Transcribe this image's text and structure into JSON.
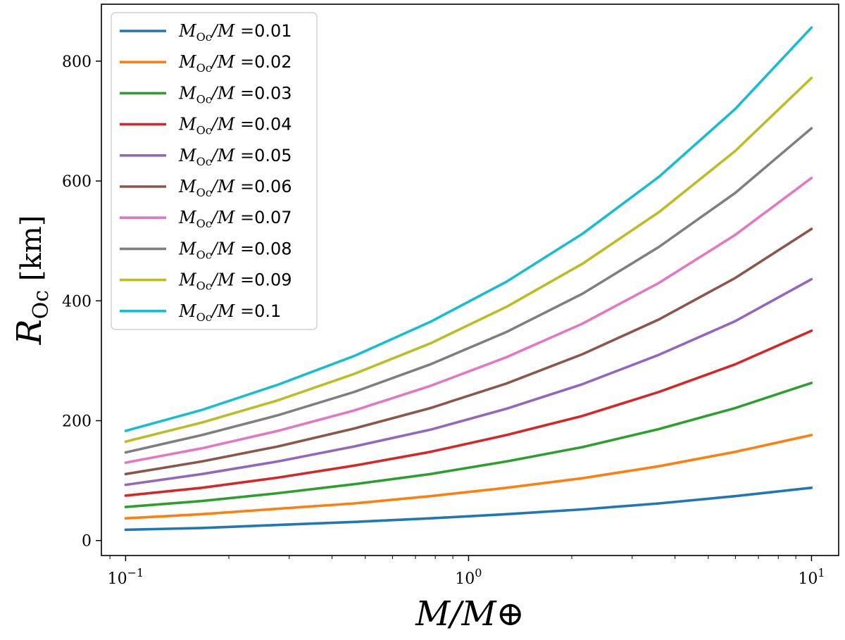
{
  "chart_data": {
    "type": "line",
    "x_scale": "log",
    "title": "",
    "xlabel": "M/M⊕",
    "ylabel": "R_Oc [km]",
    "xlim": [
      0.085,
      12
    ],
    "ylim": [
      -25,
      895
    ],
    "grid": false,
    "legend_position": "upper-left",
    "x": [
      0.1,
      0.167,
      0.278,
      0.464,
      0.774,
      1.29,
      2.15,
      3.59,
      5.99,
      10.0
    ],
    "xticks": [
      {
        "value": 0.1,
        "base": "10",
        "exp": "−1"
      },
      {
        "value": 1,
        "base": "10",
        "exp": "0"
      },
      {
        "value": 10,
        "base": "10",
        "exp": "1"
      }
    ],
    "yticks": [
      0,
      200,
      400,
      600,
      800
    ],
    "legend_prefix": "M",
    "legend_sub": "Oc",
    "legend_suffix": "/M =",
    "series": [
      {
        "name": "0.01",
        "color": "#1f77b4",
        "values": [
          18,
          21,
          26,
          31,
          37,
          44,
          52,
          62,
          74,
          88
        ]
      },
      {
        "name": "0.02",
        "color": "#ff7f0e",
        "values": [
          37,
          44,
          53,
          62,
          74,
          88,
          104,
          124,
          148,
          176
        ]
      },
      {
        "name": "0.03",
        "color": "#2ca02c",
        "values": [
          56,
          66,
          79,
          94,
          111,
          132,
          156,
          186,
          221,
          263
        ]
      },
      {
        "name": "0.04",
        "color": "#d62728",
        "values": [
          75,
          88,
          105,
          125,
          148,
          176,
          208,
          248,
          294,
          350
        ]
      },
      {
        "name": "0.05",
        "color": "#9467bd",
        "values": [
          93,
          111,
          132,
          157,
          185,
          220,
          261,
          310,
          366,
          436
        ]
      },
      {
        "name": "0.06",
        "color": "#8c564b",
        "values": [
          111,
          132,
          157,
          187,
          221,
          262,
          311,
          369,
          438,
          520
        ]
      },
      {
        "name": "0.07",
        "color": "#e377c2",
        "values": [
          130,
          154,
          183,
          217,
          258,
          306,
          362,
          430,
          510,
          605
        ]
      },
      {
        "name": "0.08",
        "color": "#7f7f7f",
        "values": [
          147,
          176,
          209,
          248,
          294,
          348,
          412,
          490,
          580,
          688
        ]
      },
      {
        "name": "0.09",
        "color": "#bcbd22",
        "values": [
          165,
          197,
          234,
          278,
          329,
          390,
          462,
          548,
          650,
          772
        ]
      },
      {
        "name": "0.1",
        "color": "#17becf",
        "values": [
          183,
          218,
          260,
          308,
          365,
          432,
          512,
          607,
          720,
          856
        ]
      }
    ]
  }
}
